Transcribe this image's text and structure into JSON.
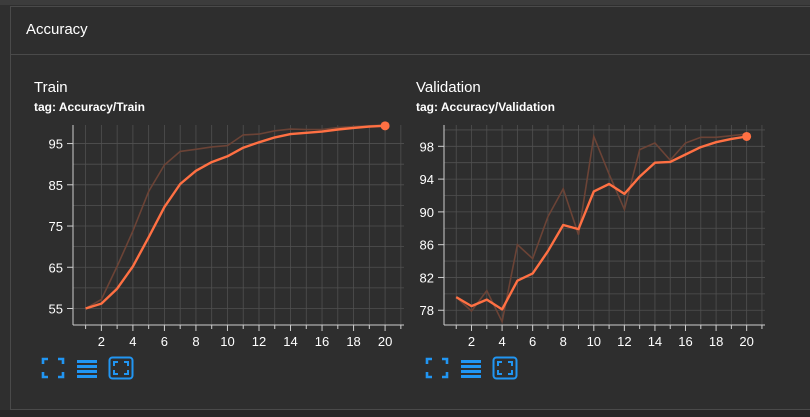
{
  "section": {
    "title": "Accuracy"
  },
  "cards": [
    {
      "title": "Train",
      "tag": "tag: Accuracy/Train"
    },
    {
      "title": "Validation",
      "tag": "tag: Accuracy/Validation"
    }
  ],
  "colors": {
    "line": "#ff7043",
    "raw": "#6b4336",
    "grid": "#505050",
    "axis": "#cfcfcf",
    "icon": "#2196f3"
  },
  "toolbar_icons": [
    "fit-to-data-icon",
    "toggle-log-scale-icon",
    "fullscreen-icon"
  ],
  "chart_data": [
    {
      "type": "line",
      "title": "Train",
      "x": [
        1,
        2,
        3,
        4,
        5,
        6,
        7,
        8,
        9,
        10,
        11,
        12,
        13,
        14,
        15,
        16,
        17,
        18,
        19,
        20
      ],
      "xticks": [
        2,
        4,
        6,
        8,
        10,
        12,
        14,
        16,
        18,
        20
      ],
      "yticks": [
        55,
        65,
        75,
        85,
        95
      ],
      "xlim": [
        0.2,
        21.2
      ],
      "ylim": [
        51,
        99.5
      ],
      "series": [
        {
          "role": "smoothed",
          "values": [
            55.0,
            56.2,
            59.8,
            65.2,
            72.3,
            79.6,
            85.2,
            88.4,
            90.5,
            91.9,
            94.0,
            95.3,
            96.5,
            97.3,
            97.6,
            97.9,
            98.4,
            98.8,
            99.1,
            99.3
          ]
        },
        {
          "role": "raw",
          "values": [
            55.0,
            57.2,
            65.2,
            73.8,
            83.4,
            89.8,
            93.1,
            93.6,
            94.2,
            94.5,
            97.1,
            97.3,
            98.1,
            98.5,
            98.4,
            98.4,
            98.9,
            99.1,
            99.3,
            99.5
          ]
        }
      ]
    },
    {
      "type": "line",
      "title": "Validation",
      "x": [
        1,
        2,
        3,
        4,
        5,
        6,
        7,
        8,
        9,
        10,
        11,
        12,
        13,
        14,
        15,
        16,
        17,
        18,
        19,
        20
      ],
      "xticks": [
        2,
        4,
        6,
        8,
        10,
        12,
        14,
        16,
        18,
        20
      ],
      "yticks": [
        78,
        82,
        86,
        90,
        94,
        98
      ],
      "xlim": [
        0.2,
        21.2
      ],
      "ylim": [
        76.2,
        100.6
      ],
      "series": [
        {
          "role": "smoothed",
          "values": [
            79.6,
            78.5,
            79.3,
            78.1,
            81.6,
            82.5,
            85.2,
            88.4,
            87.9,
            92.5,
            93.4,
            92.2,
            94.3,
            96.0,
            96.1,
            97.0,
            97.9,
            98.5,
            98.9,
            99.2
          ]
        },
        {
          "role": "raw",
          "values": [
            79.6,
            77.9,
            80.4,
            76.6,
            86.0,
            84.3,
            89.4,
            92.8,
            87.2,
            99.2,
            94.6,
            90.3,
            97.6,
            98.4,
            96.3,
            98.4,
            99.1,
            99.1,
            99.3,
            99.5
          ]
        }
      ]
    }
  ]
}
